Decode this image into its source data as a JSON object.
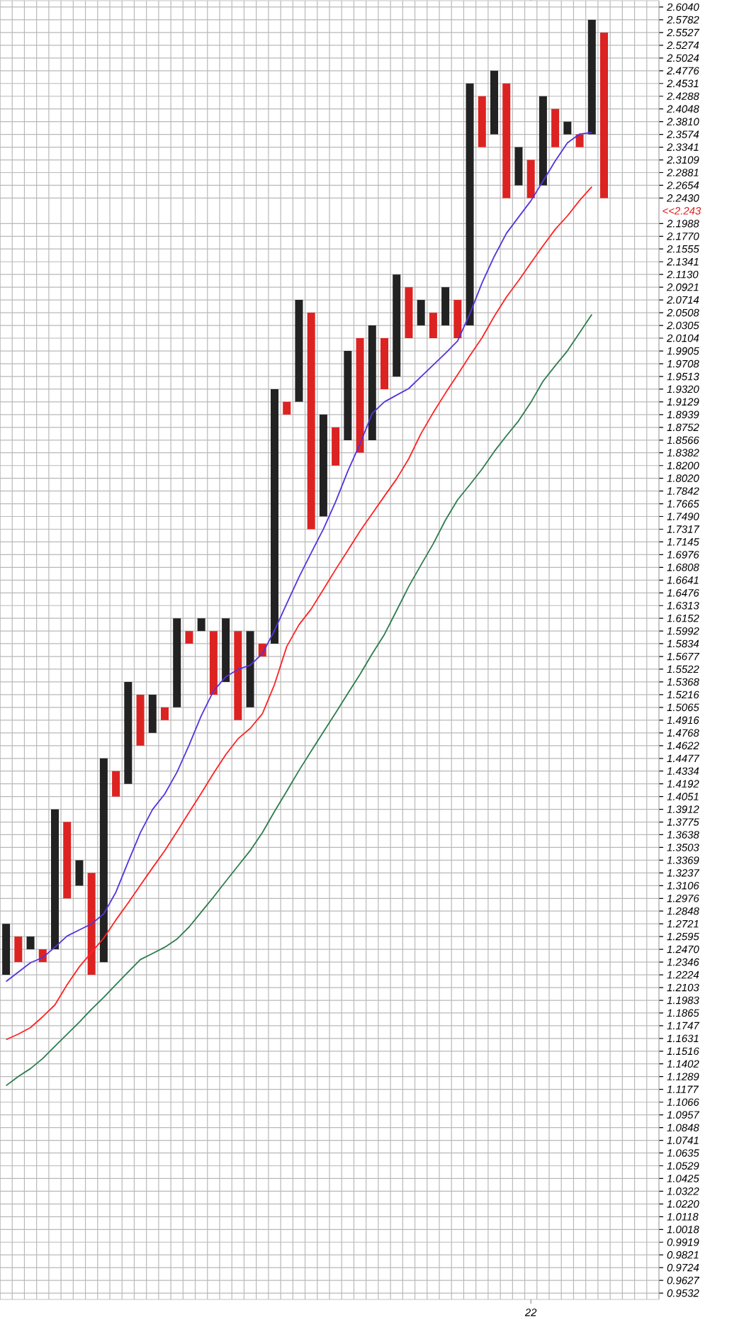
{
  "chart_data": {
    "type": "bar",
    "log": "y",
    "grid": true,
    "categories": [
      null,
      null,
      null,
      null,
      null,
      null,
      null,
      null,
      null,
      null,
      null,
      null,
      null,
      null,
      null,
      null,
      null,
      null,
      null,
      null,
      null,
      null,
      null,
      null,
      null,
      null,
      null,
      null,
      null,
      null,
      null,
      null,
      null,
      null,
      null,
      null,
      null,
      null,
      null,
      null,
      null,
      null,
      null,
      "22",
      null,
      null,
      null,
      null,
      null,
      null,
      null,
      null,
      null,
      null
    ],
    "ylim": [
      0.9485,
      2.617
    ],
    "yticks": [
      0.9532,
      0.9627,
      0.9724,
      0.9821,
      0.9919,
      1.0018,
      1.0118,
      {
        "value": 1.022,
        "label": "1.0220"
      },
      1.0322,
      1.0425,
      1.0529,
      1.0635,
      1.0741,
      1.0848,
      1.0957,
      1.1066,
      1.1177,
      1.1289,
      1.1402,
      1.1516,
      1.1631,
      1.1747,
      1.1865,
      1.1983,
      1.2103,
      1.2224,
      1.2346,
      {
        "value": 1.247,
        "label": "1.2470"
      },
      1.2595,
      1.2721,
      1.2848,
      1.2976,
      1.3106,
      1.3237,
      1.3369,
      1.3503,
      1.3638,
      1.3775,
      1.3912,
      1.4051,
      1.4192,
      1.4334,
      1.4477,
      1.4622,
      1.4768,
      1.4916,
      1.5065,
      1.5216,
      1.5368,
      1.5522,
      1.5677,
      1.5834,
      1.5992,
      1.6152,
      1.6313,
      1.6476,
      1.6641,
      1.6808,
      1.6976,
      1.7145,
      1.7317,
      {
        "value": 1.749,
        "label": "1.7490"
      },
      1.7665,
      1.7842,
      {
        "value": 1.802,
        "label": "1.8020"
      },
      {
        "value": 1.82,
        "label": "1.8200"
      },
      1.8382,
      1.8566,
      1.8752,
      1.8939,
      1.9129,
      {
        "value": 1.932,
        "label": "1.9320"
      },
      1.9513,
      1.9708,
      1.9905,
      2.0104,
      2.0305,
      2.0508,
      2.0714,
      2.0921,
      {
        "value": 2.113,
        "label": "2.1130"
      },
      2.1341,
      2.1555,
      {
        "value": 2.177,
        "label": "2.1770"
      },
      2.1988,
      {
        "value": 2.243,
        "label": "2.2430"
      },
      2.2654,
      2.2881,
      2.3109,
      2.3341,
      2.3574,
      {
        "value": 2.381,
        "label": "2.3810"
      },
      2.4048,
      2.4288,
      2.4531,
      2.4776,
      2.5024,
      2.5274,
      2.5527,
      2.5782,
      {
        "value": 2.604,
        "label": "2.6040"
      }
    ],
    "annotations": [
      "<<2.243"
    ],
    "series": [
      {
        "base": [
          1.2224,
          1.2346,
          1.247,
          1.2346,
          1.247,
          1.2976,
          1.3106,
          1.2224,
          1.2346,
          1.4051,
          1.4192,
          1.4622,
          1.4768,
          1.4916,
          1.5065,
          1.5834,
          1.5992,
          1.5216,
          1.5368,
          1.4916,
          1.5065,
          1.5677,
          1.5834,
          1.8939,
          1.9129,
          1.7317,
          1.749,
          1.82,
          1.8566,
          1.8382,
          1.8566,
          1.932,
          1.9513,
          2.0104,
          2.0305,
          2.0104,
          2.0305,
          2.0104,
          2.0305,
          2.3341,
          2.3574,
          2.243,
          2.2654,
          2.243,
          2.2654,
          2.3341,
          2.3574,
          2.3341,
          2.3574,
          2.243,
          null,
          null,
          null,
          null
        ],
        "values": [
          0.0497,
          0.0249,
          0.0125,
          0.0124,
          0.1442,
          0.0799,
          0.0263,
          0.1013,
          0.2131,
          0.0283,
          0.1176,
          0.0594,
          0.0448,
          0.0149,
          0.1087,
          0.0158,
          0.016,
          0.0776,
          0.0784,
          0.1076,
          0.0927,
          0.0157,
          0.3486,
          0.019,
          0.1585,
          0.3191,
          0.1449,
          0.0552,
          0.1339,
          0.1722,
          0.1739,
          0.0784,
          0.1617,
          0.0817,
          0.0409,
          0.0404,
          0.0616,
          0.061,
          0.4226,
          0.0947,
          0.1202,
          0.2101,
          0.0687,
          0.0679,
          0.1634,
          0.0707,
          0.0236,
          0.0233,
          0.2208,
          0.3097,
          null,
          null,
          null,
          null
        ],
        "colors": [
          "#222222",
          "#dd2222",
          "#222222",
          "#dd2222",
          "#222222",
          "#dd2222",
          "#222222",
          "#dd2222",
          "#222222",
          "#dd2222",
          "#222222",
          "#dd2222",
          "#222222",
          "#dd2222",
          "#222222",
          "#dd2222",
          "#222222",
          "#dd2222",
          "#222222",
          "#dd2222",
          "#222222",
          "#dd2222",
          "#222222",
          "#dd2222",
          "#222222",
          "#dd2222",
          "#222222",
          "#dd2222",
          "#222222",
          "#dd2222",
          "#222222",
          "#dd2222",
          "#222222",
          "#dd2222",
          "#222222",
          "#dd2222",
          "#222222",
          "#dd2222",
          "#222222",
          "#dd2222",
          "#222222",
          "#dd2222",
          "#222222",
          "#dd2222",
          "#222222",
          "#dd2222",
          "#222222",
          "#dd2222",
          "#222222",
          "#dd2222",
          "#222222",
          "#dd2222",
          "#222222",
          "#dd2222"
        ]
      },
      {
        "type": "line",
        "color": "#5533dd",
        "values": [
          1.216,
          1.225,
          1.234,
          1.239,
          1.249,
          1.26,
          1.266,
          1.272,
          1.282,
          1.304,
          1.335,
          1.366,
          1.391,
          1.408,
          1.432,
          1.463,
          1.497,
          1.526,
          1.543,
          1.552,
          1.557,
          1.571,
          1.6,
          1.634,
          1.668,
          1.7,
          1.732,
          1.769,
          1.812,
          1.851,
          1.896,
          1.913,
          1.923,
          1.933,
          1.951,
          1.969,
          1.987,
          2.006,
          2.049,
          2.099,
          2.143,
          2.182,
          2.21,
          2.238,
          2.273,
          2.309,
          2.342,
          2.358,
          2.361,
          null,
          null,
          null,
          null,
          null
        ]
      },
      {
        "type": "line",
        "color": "#ff2222",
        "values": [
          1.162,
          1.167,
          1.173,
          1.183,
          1.194,
          1.213,
          1.23,
          1.244,
          1.258,
          1.276,
          1.293,
          1.311,
          1.329,
          1.347,
          1.367,
          1.388,
          1.409,
          1.431,
          1.452,
          1.47,
          1.482,
          1.499,
          1.534,
          1.58,
          1.607,
          1.627,
          1.652,
          1.678,
          1.703,
          1.729,
          1.753,
          1.777,
          1.801,
          1.83,
          1.866,
          1.897,
          1.926,
          1.954,
          1.983,
          2.011,
          2.045,
          2.076,
          2.103,
          2.132,
          2.161,
          2.189,
          2.212,
          2.239,
          2.263,
          null,
          null,
          null,
          null,
          null
        ]
      },
      {
        "type": "line",
        "color": "#2e7d4f",
        "values": [
          1.121,
          1.129,
          1.136,
          1.145,
          1.156,
          1.167,
          1.178,
          1.19,
          1.201,
          1.213,
          1.225,
          1.237,
          1.243,
          1.249,
          1.257,
          1.269,
          1.284,
          1.299,
          1.315,
          1.331,
          1.347,
          1.366,
          1.389,
          1.411,
          1.434,
          1.456,
          1.478,
          1.5,
          1.523,
          1.546,
          1.571,
          1.595,
          1.625,
          1.656,
          1.684,
          1.712,
          1.744,
          1.772,
          1.793,
          1.815,
          1.84,
          1.863,
          1.885,
          1.912,
          1.944,
          1.968,
          1.991,
          2.019,
          2.048,
          null,
          null,
          null,
          null,
          null
        ]
      }
    ]
  }
}
